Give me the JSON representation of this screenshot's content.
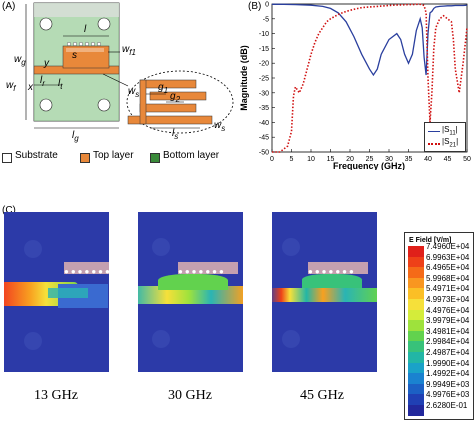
{
  "panel_a": {
    "label": "(A)",
    "dims": {
      "wg": "w",
      "wg_sub": "g",
      "wf": "w",
      "wf_sub": "f",
      "x": "x",
      "y": "y",
      "lr": "l",
      "lr_sub": "r",
      "lt": "l",
      "lt_sub": "t",
      "l": "l",
      "s": "s",
      "wf1": "w",
      "wf1_sub": "f1",
      "ws": "w",
      "ws_sub": "s",
      "g1": "g",
      "g1_sub": "1",
      "g2": "g",
      "g2_sub": "2",
      "ls": "l",
      "ls_sub": "s",
      "ws2": "w",
      "ws2_sub": "s",
      "lg": "l",
      "lg_sub": "g"
    },
    "legend": [
      {
        "label": "Substrate",
        "color": "#ffffff"
      },
      {
        "label": "Top layer",
        "color": "#e8883a"
      },
      {
        "label": "Bottom layer",
        "color": "#3a8a3a"
      }
    ]
  },
  "panel_b": {
    "label": "(B)",
    "chart_data": {
      "type": "line",
      "xlabel": "Frequency (GHz)",
      "ylabel": "Magnitude (dB)",
      "xlim": [
        0,
        50
      ],
      "ylim": [
        -50,
        0
      ],
      "xticks": [
        "0",
        "5",
        "10",
        "15",
        "20",
        "25",
        "30",
        "35",
        "40",
        "45",
        "50"
      ],
      "yticks": [
        "0",
        "-5",
        "-10",
        "-15",
        "-20",
        "-25",
        "-30",
        "-35",
        "-40",
        "-45",
        "-50"
      ],
      "legend_position": "bottom-right",
      "series": [
        {
          "name": "|S11|",
          "legend_main": "|S",
          "legend_sub": "11",
          "legend_end": "|",
          "color": "#2a3f9e",
          "style": "solid",
          "x": [
            0,
            3,
            6,
            10,
            13,
            15,
            17,
            19,
            21,
            23,
            25,
            26,
            27,
            28,
            30,
            32,
            33,
            34,
            35,
            36,
            37,
            38,
            38.5,
            39,
            39.5,
            40,
            40.5,
            41,
            41.5,
            42,
            43,
            44,
            45,
            46,
            47,
            48,
            49,
            50
          ],
          "y": [
            -0.1,
            -0.1,
            -0.2,
            -0.4,
            -0.8,
            -1.5,
            -3,
            -6,
            -11,
            -17,
            -22,
            -24,
            -22,
            -17,
            -12,
            -10,
            -12,
            -17,
            -20,
            -17,
            -9,
            -5,
            -8,
            -18,
            -24,
            -10,
            -3,
            -2.5,
            -1.5,
            -1,
            -0.8,
            -0.7,
            -0.6,
            -0.6,
            -0.5,
            -0.5,
            -0.5,
            -0.4
          ]
        },
        {
          "name": "|S21|",
          "legend_main": "|S",
          "legend_sub": "21",
          "legend_end": "|",
          "color": "#d01010",
          "style": "dotted",
          "x": [
            0,
            2,
            4,
            5,
            5.5,
            6,
            7,
            8,
            9,
            10,
            11,
            12,
            13,
            14,
            15,
            17,
            19,
            21,
            23,
            25,
            27,
            29,
            31,
            33,
            35,
            36,
            37,
            38,
            38.5,
            39,
            39.5,
            40,
            40.5,
            41,
            41.5,
            42,
            43,
            44,
            45,
            46,
            46.5,
            47,
            48,
            49,
            50
          ],
          "y": [
            -50,
            -50,
            -48,
            -43,
            -31,
            -28,
            -30,
            -27,
            -22,
            -17,
            -13,
            -10,
            -8,
            -6,
            -5,
            -3.5,
            -2.5,
            -1.8,
            -1.2,
            -1,
            -0.8,
            -0.6,
            -0.4,
            -0.3,
            -0.2,
            -0.2,
            -0.1,
            -0.1,
            -0.2,
            -0.5,
            -3,
            -25,
            -40,
            -30,
            -15,
            -8,
            -5,
            -4,
            -5,
            -6,
            -12,
            -22,
            -30,
            -20,
            -8
          ]
        }
      ]
    }
  },
  "panel_c": {
    "label": "(C)",
    "freqs": [
      "13 GHz",
      "30 GHz",
      "45 GHz"
    ],
    "colorbar": {
      "title": "E Field [V/m]",
      "values": [
        "7.4960E+04",
        "6.9963E+04",
        "6.4965E+04",
        "5.9968E+04",
        "5.4971E+04",
        "4.9973E+04",
        "4.4976E+04",
        "3.9979E+04",
        "3.4981E+04",
        "2.9984E+04",
        "2.4987E+04",
        "1.9990E+04",
        "1.4992E+04",
        "9.9949E+03",
        "4.9976E+03",
        "2.6280E-01"
      ],
      "colors": [
        "#e0201a",
        "#ee4018",
        "#f56a18",
        "#f99620",
        "#fbbf26",
        "#f6e03a",
        "#d4ec3a",
        "#9ee23c",
        "#62d24e",
        "#38c27a",
        "#22b6a6",
        "#1aa2c8",
        "#1a82d0",
        "#1c60c4",
        "#2040b4",
        "#22289c"
      ]
    }
  }
}
